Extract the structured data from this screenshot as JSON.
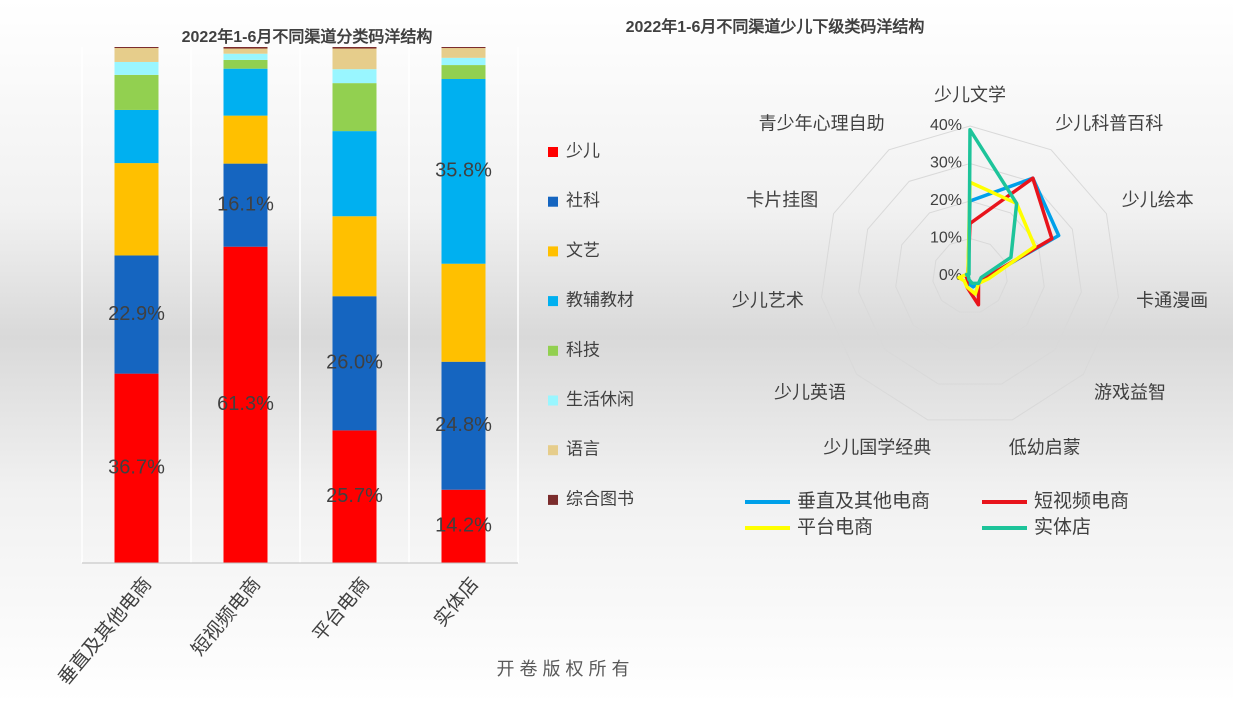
{
  "chart_data": [
    {
      "type": "bar",
      "stacked": true,
      "title": "2022年1-6月不同渠道分类码洋结构",
      "categories": [
        "垂直及其他电商",
        "短视频电商",
        "平台电商",
        "实体店"
      ],
      "ylim": [
        0,
        100
      ],
      "series": [
        {
          "name": "少儿",
          "color": "#ff0000",
          "values": [
            36.7,
            61.3,
            25.7,
            14.2
          ],
          "value_labels": [
            "36.7%",
            "61.3%",
            "25.7%",
            "14.2%"
          ]
        },
        {
          "name": "社科",
          "color": "#1565c0",
          "values": [
            22.9,
            16.1,
            26.0,
            24.8
          ],
          "value_labels": [
            "22.9%",
            "16.1%",
            "26.0%",
            "24.8%"
          ]
        },
        {
          "name": "文艺",
          "color": "#ffc000",
          "values": [
            17.9,
            9.3,
            15.5,
            19.0
          ]
        },
        {
          "name": "教辅教材",
          "color": "#00b0f0",
          "values": [
            10.3,
            9.1,
            16.5,
            35.8
          ],
          "value_labels": [
            null,
            null,
            null,
            "35.8%"
          ]
        },
        {
          "name": "科技",
          "color": "#92d050",
          "values": [
            6.8,
            1.7,
            9.3,
            2.7
          ]
        },
        {
          "name": "生活休闲",
          "color": "#99f6ff",
          "values": [
            2.5,
            1.2,
            2.7,
            1.4
          ]
        },
        {
          "name": "语言",
          "color": "#e6cd8b",
          "values": [
            2.7,
            1.0,
            4.0,
            1.9
          ]
        },
        {
          "name": "综合图书",
          "color": "#7b2c2c",
          "values": [
            0.2,
            0.3,
            0.3,
            0.2
          ]
        }
      ]
    },
    {
      "type": "radar",
      "title": "2022年1-6月不同渠道少儿下级类码洋结构",
      "categories": [
        "少儿文学",
        "少儿科普百科",
        "少儿绘本",
        "卡通漫画",
        "游戏益智",
        "低幼启蒙",
        "少儿国学经典",
        "少儿英语",
        "少儿艺术",
        "卡片挂图",
        "青少年心理自助"
      ],
      "rlim": [
        0,
        40
      ],
      "rticks": [
        {
          "value": 0,
          "label": "0%"
        },
        {
          "value": 10,
          "label": "10%"
        },
        {
          "value": 20,
          "label": "20%"
        },
        {
          "value": 30,
          "label": "30%"
        },
        {
          "value": 40,
          "label": "40%"
        }
      ],
      "series": [
        {
          "name": "垂直及其他电商",
          "color": "#00a0e9",
          "values": [
            20,
            31,
            26,
            4,
            3,
            3,
            2,
            1,
            1,
            1,
            1
          ]
        },
        {
          "name": "短视频电商",
          "color": "#e8141c",
          "values": [
            14,
            31,
            24,
            4,
            3,
            8,
            3,
            1,
            1,
            1,
            1
          ]
        },
        {
          "name": "平台电商",
          "color": "#ffff00",
          "values": [
            25,
            23,
            19,
            5,
            3,
            5,
            3,
            2,
            3,
            1,
            1
          ]
        },
        {
          "name": "实体店",
          "color": "#1dc49a",
          "values": [
            39,
            23,
            12,
            3,
            3,
            2,
            1,
            0.5,
            0.5,
            1,
            0.5
          ]
        }
      ]
    }
  ],
  "footer": "开 卷 版 权 所 有"
}
